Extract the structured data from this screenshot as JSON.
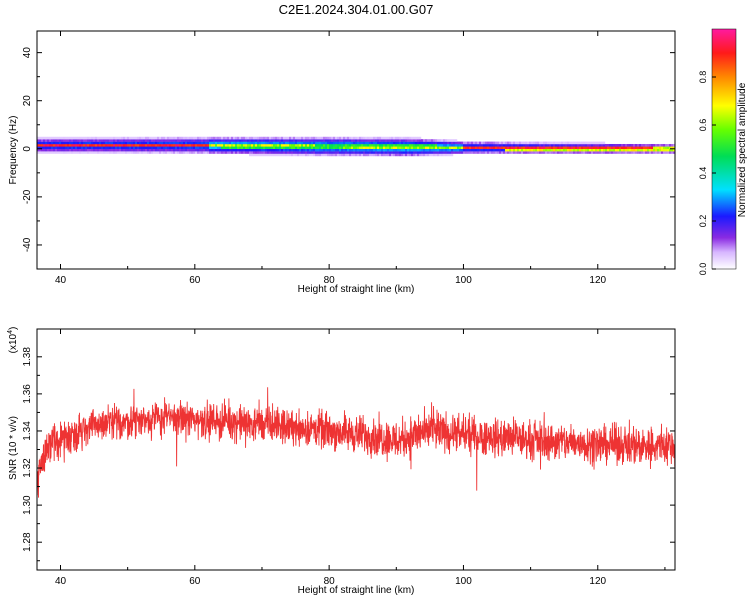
{
  "title": "C2E1.2024.304.01.00.G07",
  "chart_data": [
    {
      "type": "heatmap",
      "xlabel": "Height of straight line (km)",
      "ylabel": "Frequency (Hz)",
      "xlim": [
        36.5,
        131.5
      ],
      "ylim": [
        -50,
        49
      ],
      "xticks": [
        40,
        60,
        80,
        100,
        120
      ],
      "yticks": [
        -40,
        -20,
        0,
        20,
        40
      ],
      "band": {
        "center_hz": [
          [
            36.5,
            1.5
          ],
          [
            60,
            1.5
          ],
          [
            80,
            1.0
          ],
          [
            100,
            0.5
          ],
          [
            131.5,
            0.0
          ]
        ],
        "half_width_hz": [
          [
            36.5,
            2.5
          ],
          [
            60,
            3.0
          ],
          [
            80,
            3.5
          ],
          [
            92,
            3.5
          ],
          [
            100,
            2.2
          ],
          [
            131.5,
            1.5
          ]
        ],
        "green_core_start_km": 62,
        "green_core_end_km": 100
      },
      "colorbar": {
        "label": "Normalized spectral amplitude",
        "ticks": [
          "0.0",
          "0.2",
          "0.4",
          "0.6",
          "0.8"
        ],
        "range": [
          0,
          1
        ]
      }
    },
    {
      "type": "line",
      "xlabel": "Height of straight line (km)",
      "ylabel": "SNR (10 * v/v)",
      "scale_label": "(x10",
      "scale_exp": "4",
      "scale_close": ")",
      "xlim": [
        36.5,
        131.5
      ],
      "ylim": [
        1.265,
        1.395
      ],
      "xticks": [
        40,
        60,
        80,
        100,
        120
      ],
      "yticks": [
        "1.28",
        "1.30",
        "1.32",
        "1.34",
        "1.36",
        "1.38"
      ],
      "series": [
        {
          "color": "#ee3333",
          "segments": [
            [
              36.5,
              1.315,
              0.018
            ],
            [
              38,
              1.332,
              0.015
            ],
            [
              45,
              1.343,
              0.014
            ],
            [
              55,
              1.347,
              0.014
            ],
            [
              65,
              1.345,
              0.014
            ],
            [
              75,
              1.342,
              0.014
            ],
            [
              85,
              1.338,
              0.015
            ],
            [
              90,
              1.335,
              0.016
            ],
            [
              95,
              1.34,
              0.016
            ],
            [
              100,
              1.338,
              0.015
            ],
            [
              110,
              1.335,
              0.015
            ],
            [
              120,
              1.333,
              0.015
            ],
            [
              131.5,
              1.332,
              0.016
            ]
          ]
        }
      ]
    }
  ]
}
